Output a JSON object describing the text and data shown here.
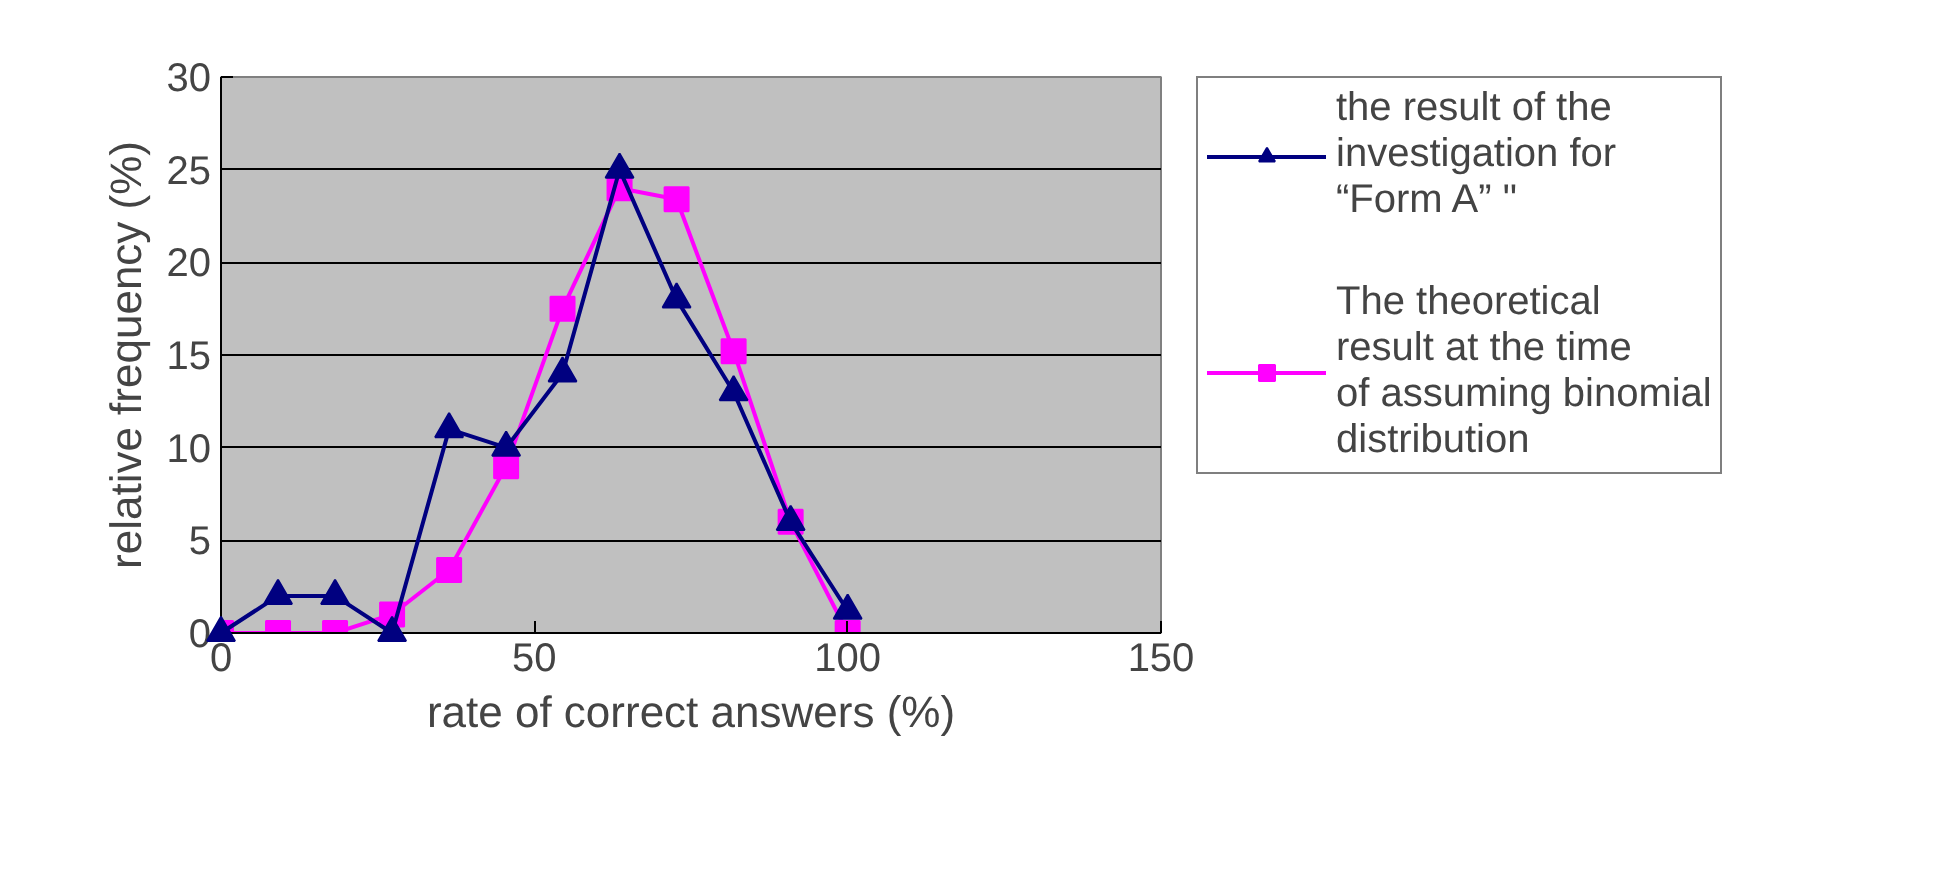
{
  "chart_data": {
    "type": "line",
    "xlabel": "rate of correct answers (%)",
    "ylabel": "relative frequency (%)",
    "x": [
      0,
      9.1,
      18.2,
      27.3,
      36.4,
      45.5,
      54.5,
      63.6,
      72.7,
      81.8,
      90.9,
      100
    ],
    "series": [
      {
        "name": "the result of the investigation for “Form A” \"",
        "color": "#000080",
        "marker": "triangle",
        "values": [
          0,
          2,
          2,
          0,
          11,
          10,
          14,
          25,
          18,
          13,
          6,
          1.2
        ]
      },
      {
        "name": "The theoretical result at the time of assuming binomial distribution",
        "color": "#ff00ff",
        "marker": "square",
        "values": [
          0,
          0,
          0,
          1,
          3.4,
          9,
          17.5,
          24,
          23.4,
          15.2,
          6,
          0
        ]
      }
    ],
    "xlim": [
      0,
      150
    ],
    "xticks": [
      0,
      50,
      100,
      150
    ],
    "ylim": [
      0,
      30
    ],
    "yticks": [
      0,
      5,
      10,
      15,
      20,
      25,
      30
    ],
    "grid": "y",
    "legend": "right"
  }
}
